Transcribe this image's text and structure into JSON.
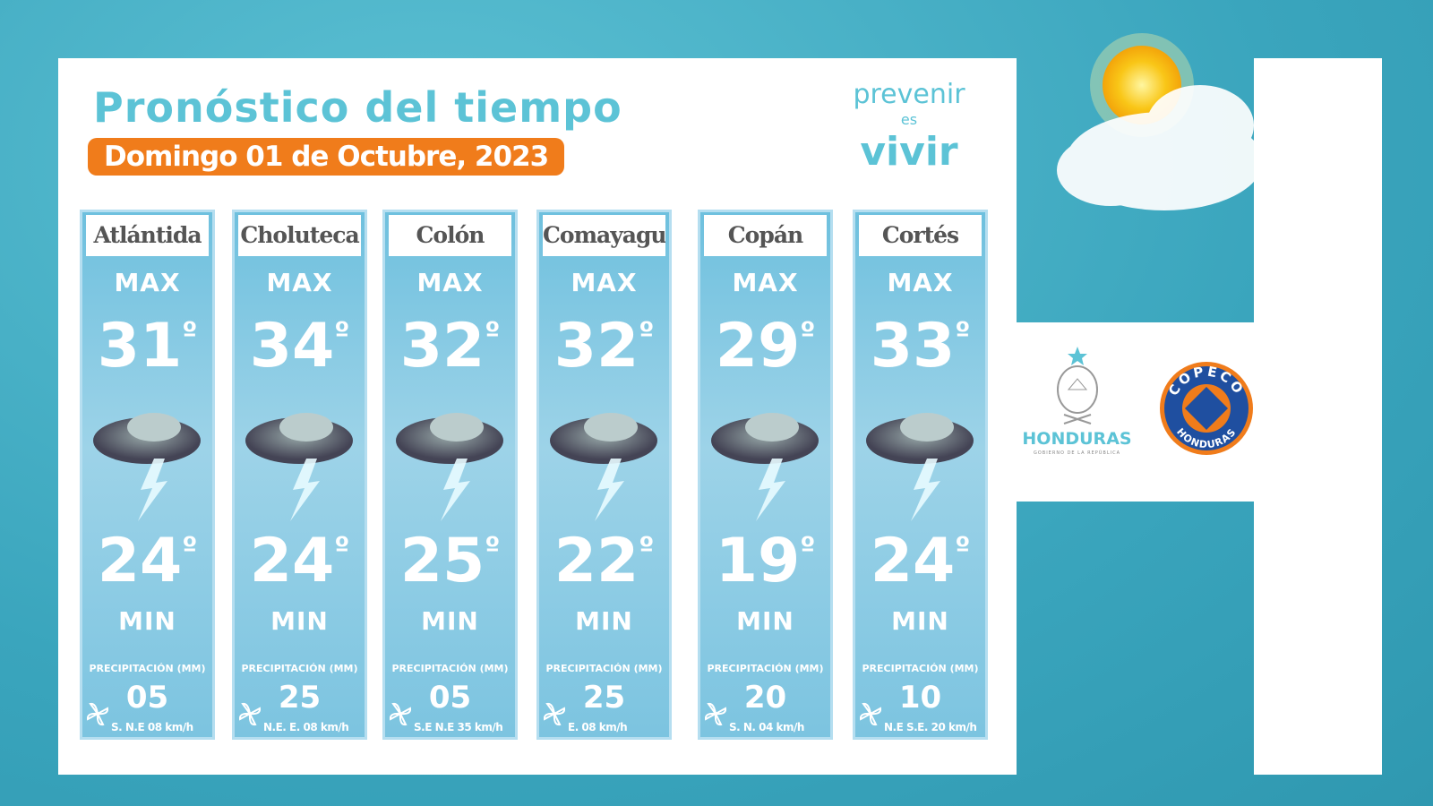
{
  "header": {
    "title": "Pronóstico del tiempo",
    "date": "Domingo 01 de Octubre, 2023"
  },
  "brand": {
    "line1": "prevenir",
    "line2": "es",
    "line3": "vivir"
  },
  "labels": {
    "max": "MAX",
    "min": "MIN",
    "precip": "PRECIPITACIÓN (MM)",
    "degree": "º"
  },
  "icons": {
    "weather": "thunderstorm-icon",
    "wind": "pinwheel-icon",
    "hero": "sun-cloud-icon"
  },
  "columns": [
    {
      "name": "Atlántida",
      "max": "31",
      "min": "24",
      "precip": "05",
      "wind": "S. N.E 08 km/h"
    },
    {
      "name": "Choluteca",
      "max": "34",
      "min": "24",
      "precip": "25",
      "wind": "N.E. E. 08 km/h"
    },
    {
      "name": "Colón",
      "max": "32",
      "min": "25",
      "precip": "05",
      "wind": "S.E N.E 35 km/h"
    },
    {
      "name": "Comayagua",
      "max": "32",
      "min": "22",
      "precip": "25",
      "wind": "E. 08 km/h"
    },
    {
      "name": "Copán",
      "max": "29",
      "min": "19",
      "precip": "20",
      "wind": "S. N. 04 km/h"
    },
    {
      "name": "Cortés",
      "max": "33",
      "min": "24",
      "precip": "10",
      "wind": "N.E S.E. 20 km/h"
    }
  ],
  "logos": {
    "honduras": "HONDURAS",
    "honduras_sub": "GOBIERNO DE LA REPÚBLICA",
    "copeco": "COPECO",
    "copeco_sub": "HONDURAS"
  },
  "colors": {
    "accent": "#5cc3d6",
    "orange": "#f07c1b",
    "copeco_blue": "#1f4fa0"
  }
}
